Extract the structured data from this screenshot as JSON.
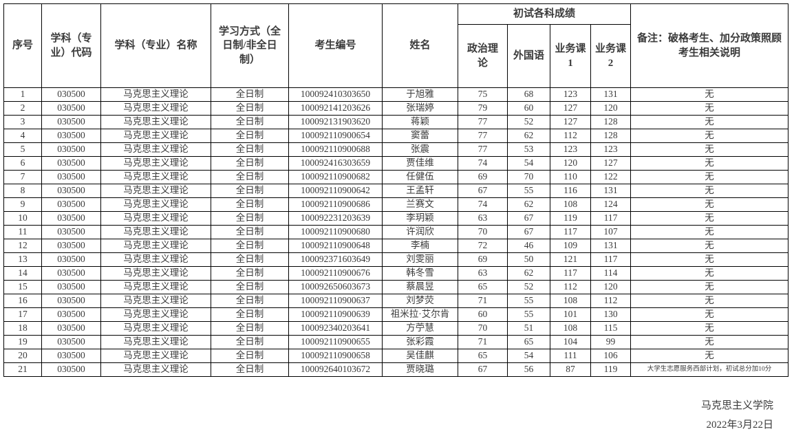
{
  "table": {
    "headers": {
      "index": "序号",
      "subject_code": "学科（专业）代码",
      "subject_name": "学科（专业）名称",
      "study_mode": "学习方式（全日制/非全日制）",
      "candidate_no": "考生编号",
      "name": "姓名",
      "scores_group": "初试各科成绩",
      "politics": "政治理论",
      "foreign_lang": "外国语",
      "course1": "业务课1",
      "course2": "业务课2",
      "remark": "备注：破格考生、加分政策照顾考生相关说明"
    },
    "rows": [
      [
        "1",
        "030500",
        "马克思主义理论",
        "全日制",
        "100092410303650",
        "于旭雅",
        "75",
        "68",
        "123",
        "131",
        "无"
      ],
      [
        "2",
        "030500",
        "马克思主义理论",
        "全日制",
        "100092141203626",
        "张瑞婷",
        "79",
        "60",
        "127",
        "120",
        "无"
      ],
      [
        "3",
        "030500",
        "马克思主义理论",
        "全日制",
        "100092131903620",
        "蒋颖",
        "77",
        "52",
        "127",
        "128",
        "无"
      ],
      [
        "4",
        "030500",
        "马克思主义理论",
        "全日制",
        "100092110900654",
        "窦蕾",
        "77",
        "62",
        "112",
        "128",
        "无"
      ],
      [
        "5",
        "030500",
        "马克思主义理论",
        "全日制",
        "100092110900688",
        "张震",
        "77",
        "53",
        "123",
        "123",
        "无"
      ],
      [
        "6",
        "030500",
        "马克思主义理论",
        "全日制",
        "100092416303659",
        "贾佳维",
        "74",
        "54",
        "120",
        "127",
        "无"
      ],
      [
        "7",
        "030500",
        "马克思主义理论",
        "全日制",
        "100092110900682",
        "任健伍",
        "69",
        "70",
        "110",
        "122",
        "无"
      ],
      [
        "8",
        "030500",
        "马克思主义理论",
        "全日制",
        "100092110900642",
        "王孟轩",
        "67",
        "55",
        "116",
        "131",
        "无"
      ],
      [
        "9",
        "030500",
        "马克思主义理论",
        "全日制",
        "100092110900686",
        "兰赛文",
        "74",
        "62",
        "108",
        "124",
        "无"
      ],
      [
        "10",
        "030500",
        "马克思主义理论",
        "全日制",
        "100092231203639",
        "李玥颖",
        "63",
        "67",
        "119",
        "117",
        "无"
      ],
      [
        "11",
        "030500",
        "马克思主义理论",
        "全日制",
        "100092110900680",
        "许润欣",
        "70",
        "67",
        "117",
        "107",
        "无"
      ],
      [
        "12",
        "030500",
        "马克思主义理论",
        "全日制",
        "100092110900648",
        "李楠",
        "72",
        "46",
        "109",
        "131",
        "无"
      ],
      [
        "13",
        "030500",
        "马克思主义理论",
        "全日制",
        "100092371603649",
        "刘雯丽",
        "69",
        "50",
        "121",
        "117",
        "无"
      ],
      [
        "14",
        "030500",
        "马克思主义理论",
        "全日制",
        "100092110900676",
        "韩冬雪",
        "63",
        "62",
        "117",
        "114",
        "无"
      ],
      [
        "15",
        "030500",
        "马克思主义理论",
        "全日制",
        "100092650603673",
        "蔡晨昱",
        "65",
        "52",
        "112",
        "120",
        "无"
      ],
      [
        "16",
        "030500",
        "马克思主义理论",
        "全日制",
        "100092110900637",
        "刘梦荧",
        "71",
        "55",
        "108",
        "112",
        "无"
      ],
      [
        "17",
        "030500",
        "马克思主义理论",
        "全日制",
        "100092110900639",
        "祖米拉·艾尔肯",
        "60",
        "55",
        "101",
        "130",
        "无"
      ],
      [
        "18",
        "030500",
        "马克思主义理论",
        "全日制",
        "100092340203641",
        "方苧慧",
        "70",
        "51",
        "108",
        "115",
        "无"
      ],
      [
        "19",
        "030500",
        "马克思主义理论",
        "全日制",
        "100092110900655",
        "张彩霞",
        "71",
        "65",
        "104",
        "99",
        "无"
      ],
      [
        "20",
        "030500",
        "马克思主义理论",
        "全日制",
        "100092110900658",
        "吴佳麒",
        "65",
        "54",
        "111",
        "106",
        "无"
      ],
      [
        "21",
        "030500",
        "马克思主义理论",
        "全日制",
        "100092640103672",
        "贾晓璐",
        "67",
        "56",
        "87",
        "119",
        "大学生志愿服务西部计划，初试总分加10分"
      ]
    ]
  },
  "footer": {
    "signature": "马克思主义学院",
    "date": "2022年3月22日"
  }
}
